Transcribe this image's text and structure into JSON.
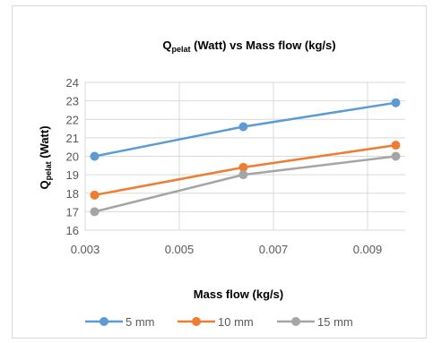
{
  "chart_data": {
    "type": "line",
    "title_main": "Q",
    "title_sub": "pelat",
    "title_rest": " (Watt) vs Mass flow  (kg/s)",
    "xlabel": "Mass flow  (kg/s)",
    "ylabel_main": "Q",
    "ylabel_sub": "pelat",
    "ylabel_rest": " (Watt)",
    "xlim": [
      0.003,
      0.0098
    ],
    "ylim": [
      16,
      24
    ],
    "x_ticks": [
      "0.003",
      "0.005",
      "0.007",
      "0.009"
    ],
    "y_ticks": [
      "16",
      "17",
      "18",
      "19",
      "20",
      "21",
      "22",
      "23",
      "24"
    ],
    "grid": true,
    "legend": "bottom",
    "x": [
      0.0032,
      0.00636,
      0.0096
    ],
    "series": [
      {
        "name": "5 mm",
        "color": "#5b9bd5",
        "values": [
          20.0,
          21.6,
          22.9
        ]
      },
      {
        "name": "10 mm",
        "color": "#ed7d31",
        "values": [
          17.9,
          19.4,
          20.6
        ]
      },
      {
        "name": "15 mm",
        "color": "#a5a5a5",
        "values": [
          17.0,
          19.0,
          20.0
        ]
      }
    ]
  }
}
